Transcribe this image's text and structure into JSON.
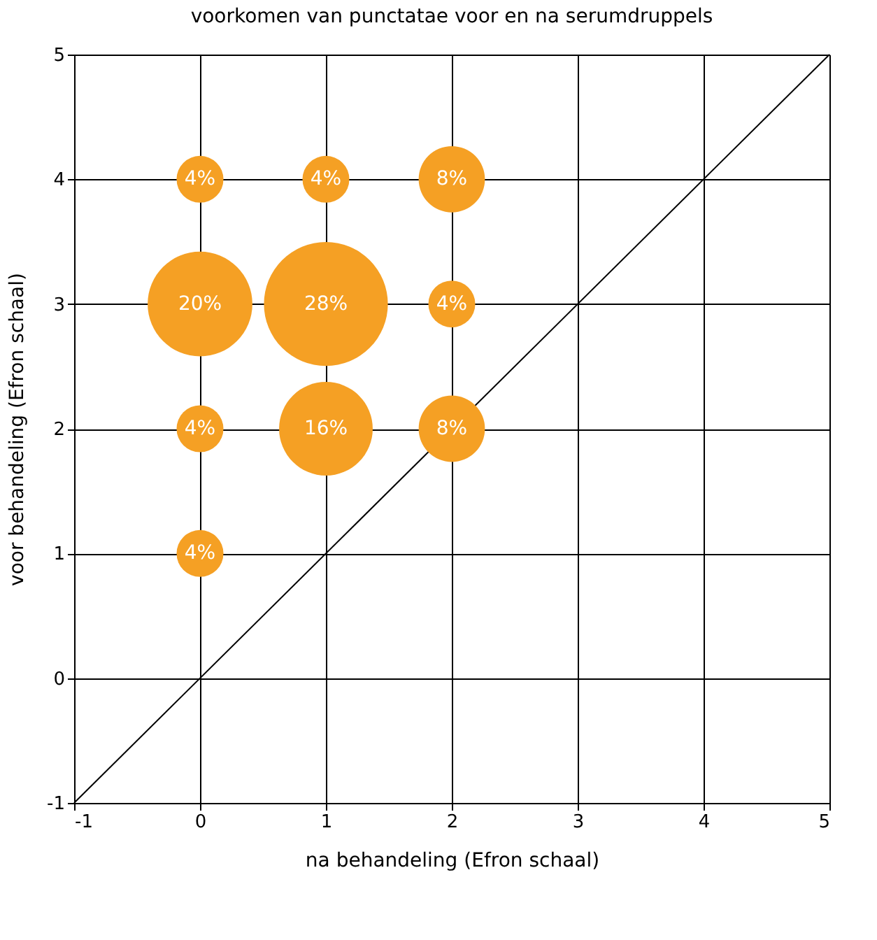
{
  "chart_data": {
    "type": "bubble",
    "title": "voorkomen van punctatae voor en na serumdruppels",
    "xlabel": "na behandeling (Efron schaal)",
    "ylabel": "voor behandeling (Efron schaal)",
    "xlim": [
      -1,
      5
    ],
    "ylim": [
      -1,
      5
    ],
    "xticks": [
      -1,
      0,
      1,
      2,
      3,
      4,
      5
    ],
    "yticks": [
      -1,
      0,
      1,
      2,
      3,
      4,
      5
    ],
    "grid": true,
    "series": [
      {
        "type": "line",
        "color": "#000000",
        "x": [
          -1,
          5
        ],
        "values": [
          -1,
          5
        ]
      },
      {
        "color": "#f5a024",
        "x": [
          0,
          1,
          2,
          0,
          1,
          2,
          0,
          1,
          2,
          0
        ],
        "values": [
          4,
          4,
          4,
          3,
          3,
          3,
          2,
          2,
          2,
          1
        ],
        "sizes": [
          0.143,
          0.143,
          0.286,
          0.714,
          1,
          0.143,
          0.143,
          0.571,
          0.286,
          0.143
        ]
      }
    ],
    "annotations": [
      {
        "text": "4%",
        "x": 0,
        "y": 4
      },
      {
        "text": "4%",
        "x": 1,
        "y": 4
      },
      {
        "text": "8%",
        "x": 2,
        "y": 4
      },
      {
        "text": "20%",
        "x": 0,
        "y": 3
      },
      {
        "text": "28%",
        "x": 1,
        "y": 3
      },
      {
        "text": "4%",
        "x": 2,
        "y": 3
      },
      {
        "text": "4%",
        "x": 0,
        "y": 2
      },
      {
        "text": "16%",
        "x": 1,
        "y": 2
      },
      {
        "text": "8%",
        "x": 2,
        "y": 2
      },
      {
        "text": "4%",
        "x": 0,
        "y": 1
      }
    ]
  }
}
